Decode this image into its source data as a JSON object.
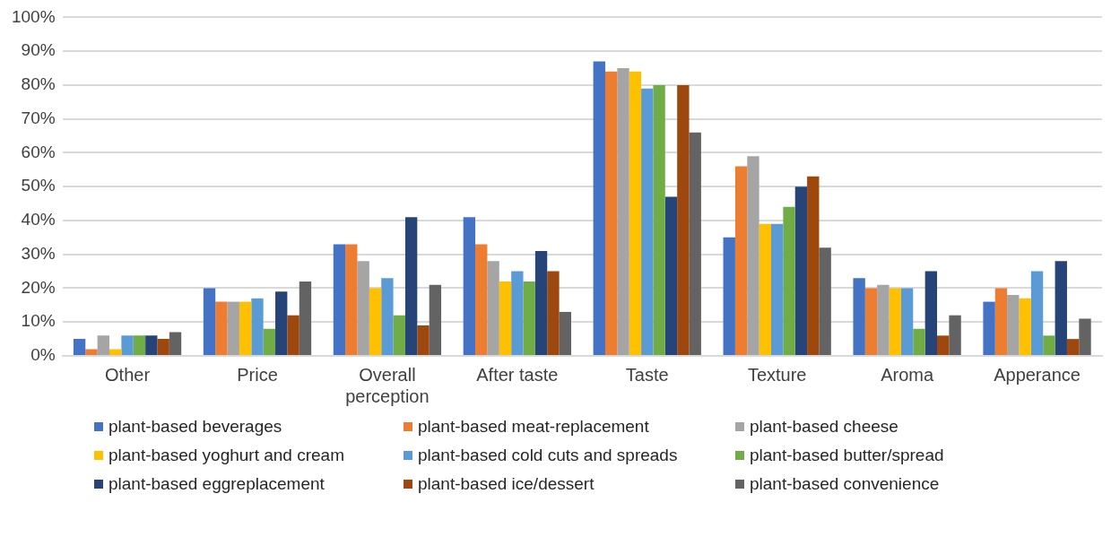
{
  "chart_data": {
    "type": "bar",
    "categories": [
      "Other",
      "Price",
      "Overall perception",
      "After taste",
      "Taste",
      "Texture",
      "Aroma",
      "Apperance"
    ],
    "series": [
      {
        "name": "plant-based beverages",
        "color": "#4472c4",
        "values": [
          5,
          20,
          33,
          41,
          87,
          35,
          23,
          16
        ]
      },
      {
        "name": "plant-based meat-replacement",
        "color": "#ed7d31",
        "values": [
          2,
          16,
          33,
          33,
          84,
          56,
          20,
          20
        ]
      },
      {
        "name": "plant-based cheese",
        "color": "#a5a5a5",
        "values": [
          6,
          16,
          28,
          28,
          85,
          59,
          21,
          18
        ]
      },
      {
        "name": "plant-based yoghurt and cream",
        "color": "#ffc000",
        "values": [
          2,
          16,
          20,
          22,
          84,
          39,
          20,
          17
        ]
      },
      {
        "name": "plant-based cold cuts and spreads",
        "color": "#5b9bd5",
        "values": [
          6,
          17,
          23,
          25,
          79,
          39,
          20,
          25
        ]
      },
      {
        "name": "plant-based butter/spread",
        "color": "#70ad47",
        "values": [
          6,
          8,
          12,
          22,
          80,
          44,
          8,
          6
        ]
      },
      {
        "name": "plant-based eggreplacement",
        "color": "#264478",
        "values": [
          6,
          19,
          41,
          31,
          47,
          50,
          25,
          28
        ]
      },
      {
        "name": "plant-based ice/dessert",
        "color": "#9e480e",
        "values": [
          5,
          12,
          9,
          25,
          80,
          53,
          6,
          5
        ]
      },
      {
        "name": "plant-based convenience",
        "color": "#636363",
        "values": [
          7,
          22,
          21,
          13,
          66,
          32,
          12,
          11
        ]
      }
    ],
    "ylim": [
      0,
      100
    ],
    "yticks": [
      {
        "value": 0,
        "label": "0%"
      },
      {
        "value": 10,
        "label": "10%"
      },
      {
        "value": 20,
        "label": "20%"
      },
      {
        "value": 30,
        "label": "30%"
      },
      {
        "value": 40,
        "label": "40%"
      },
      {
        "value": 50,
        "label": "50%"
      },
      {
        "value": 60,
        "label": "60%"
      },
      {
        "value": 70,
        "label": "70%"
      },
      {
        "value": 80,
        "label": "80%"
      },
      {
        "value": 90,
        "label": "90%"
      },
      {
        "value": 100,
        "label": "100%"
      }
    ],
    "grid": "y",
    "legend": "bottom"
  }
}
